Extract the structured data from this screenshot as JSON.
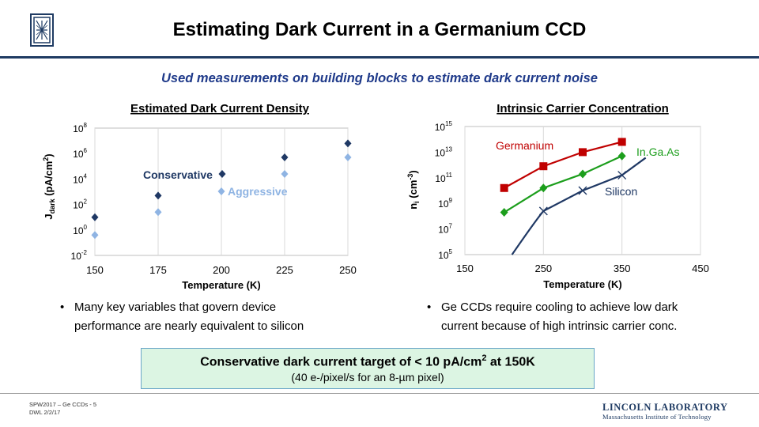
{
  "title": "Estimating Dark Current in a Germanium CCD",
  "subtitle": "Used measurements on building blocks to estimate dark current noise",
  "colors": {
    "navy": "#1f3b63",
    "subtitle_blue": "#1f3a8a",
    "conservative": "#1f3864",
    "aggressive": "#8fb4e3",
    "germanium": "#c00000",
    "ingaas": "#1c9e1c",
    "silicon": "#1f3864",
    "box_fill": "#dcf5e3"
  },
  "left_chart": {
    "title": "Estimated Dark Current Density",
    "ylabel_main": "J",
    "ylabel_sub": "dark",
    "ylabel_units": " (pA/cm",
    "ylabel_sup": "2",
    "ylabel_close": ")",
    "xlabel": "Temperature (K)",
    "xticks": [
      "150",
      "175",
      "200",
      "225",
      "250"
    ],
    "yticks": [
      {
        "base": "10",
        "exp": "8"
      },
      {
        "base": "10",
        "exp": "6"
      },
      {
        "base": "10",
        "exp": "4"
      },
      {
        "base": "10",
        "exp": "2"
      },
      {
        "base": "10",
        "exp": "0"
      },
      {
        "base": "10",
        "exp": "-2"
      }
    ],
    "label_conservative": "Conservative",
    "label_aggressive": "Aggressive"
  },
  "right_chart": {
    "title": "Intrinsic Carrier Concentration",
    "ylabel_main": "n",
    "ylabel_sub": "i",
    "ylabel_units": " (cm",
    "ylabel_sup": "-3",
    "ylabel_close": ")",
    "xlabel": "Temperature (K)",
    "xticks": [
      "150",
      "250",
      "350",
      "450"
    ],
    "yticks": [
      {
        "base": "10",
        "exp": "15"
      },
      {
        "base": "10",
        "exp": "13"
      },
      {
        "base": "10",
        "exp": "11"
      },
      {
        "base": "10",
        "exp": "9"
      },
      {
        "base": "10",
        "exp": "7"
      },
      {
        "base": "10",
        "exp": "5"
      }
    ],
    "label_germanium": "Germanium",
    "label_ingaas": "In.Ga.As",
    "label_silicon": "Silicon"
  },
  "chart_data": [
    {
      "type": "scatter",
      "title": "Estimated Dark Current Density",
      "xlabel": "Temperature (K)",
      "ylabel": "Jdark (pA/cm2)",
      "xlim": [
        150,
        250
      ],
      "ylim_log10": [
        -2,
        8
      ],
      "y_scale": "log",
      "grid": "vertical",
      "series": [
        {
          "name": "Conservative",
          "marker": "diamond",
          "x": [
            150,
            175,
            225,
            250
          ],
          "y_log10": [
            1.0,
            2.7,
            5.7,
            6.8
          ]
        },
        {
          "name": "Aggressive",
          "marker": "diamond",
          "x": [
            150,
            175,
            225,
            250
          ],
          "y_log10": [
            -0.4,
            1.4,
            4.4,
            5.7
          ]
        }
      ]
    },
    {
      "type": "line",
      "title": "Intrinsic Carrier Concentration",
      "xlabel": "Temperature (K)",
      "ylabel": "ni (cm-3)",
      "xlim": [
        150,
        450
      ],
      "ylim_log10": [
        5,
        15
      ],
      "y_scale": "log",
      "grid": "vertical",
      "series": [
        {
          "name": "Germanium",
          "marker": "square",
          "x": [
            200,
            250,
            300,
            350
          ],
          "y_log10": [
            10.2,
            11.9,
            13.0,
            13.8
          ]
        },
        {
          "name": "In.Ga.As",
          "marker": "diamond",
          "x": [
            200,
            250,
            300,
            350
          ],
          "y_log10": [
            8.3,
            10.2,
            11.3,
            12.7
          ]
        },
        {
          "name": "Silicon",
          "marker": "x",
          "x": [
            250,
            300,
            350
          ],
          "y_log10": [
            8.4,
            10.0,
            11.2
          ]
        }
      ]
    }
  ],
  "bullets": {
    "left_line1": "Many key variables that govern device",
    "left_line2": "performance are nearly equivalent to silicon",
    "right_line1": "Ge CCDs require cooling to achieve low dark",
    "right_line2": "current because of high intrinsic carrier conc.",
    "bullet_char": "•"
  },
  "target": {
    "main_pre": "Conservative dark current target of < 10 pA/cm",
    "main_sup": "2",
    "main_post": " at 150K",
    "sub": "(40 e-/pixel/s for an 8-µm pixel)"
  },
  "footer": {
    "line1": "SPW2017 – Ge CCDs - 5",
    "line2": "DWL 2/2/17"
  },
  "branding": {
    "lab": "LINCOLN LABORATORY",
    "institute": "Massachusetts Institute of Technology"
  }
}
